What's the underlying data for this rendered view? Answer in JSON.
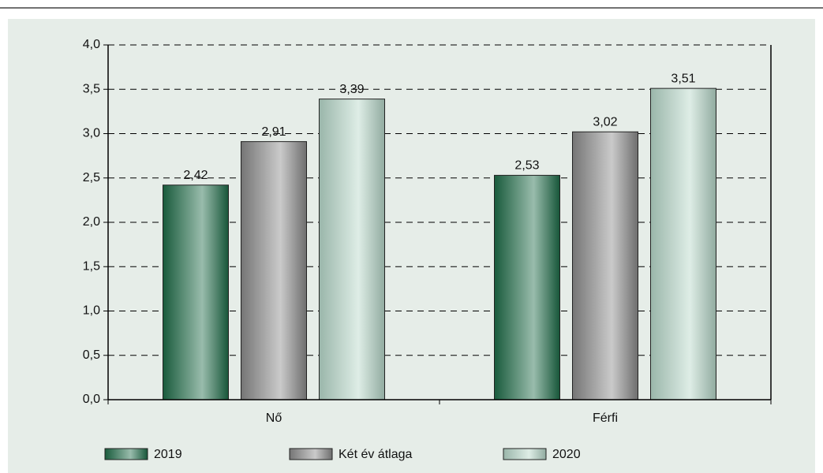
{
  "chart_data": {
    "type": "bar",
    "categories": [
      "Nő",
      "Férfi"
    ],
    "series": [
      {
        "name": "2019",
        "color": "#1d6b47",
        "values": [
          2.42,
          2.53
        ],
        "value_labels": [
          "2,42",
          "2,53"
        ]
      },
      {
        "name": "Két év átlaga",
        "color": "#8a8a8a",
        "values": [
          2.91,
          3.02
        ],
        "value_labels": [
          "2,91",
          "3,02"
        ]
      },
      {
        "name": "2020",
        "color": "#b5d6c8",
        "values": [
          3.39,
          3.51
        ],
        "value_labels": [
          "3,39",
          "3,51"
        ]
      }
    ],
    "ylim": [
      0,
      4
    ],
    "yticks": [
      {
        "value": 0,
        "label": "0,0"
      },
      {
        "value": 0.5,
        "label": "0,5"
      },
      {
        "value": 1,
        "label": "1,0"
      },
      {
        "value": 1.5,
        "label": "1,5"
      },
      {
        "value": 2,
        "label": "2,0"
      },
      {
        "value": 2.5,
        "label": "2,5"
      },
      {
        "value": 3,
        "label": "3,0"
      },
      {
        "value": 3.5,
        "label": "3,5"
      },
      {
        "value": 4,
        "label": "4,0"
      }
    ],
    "grid": true,
    "legend": "bottom"
  }
}
